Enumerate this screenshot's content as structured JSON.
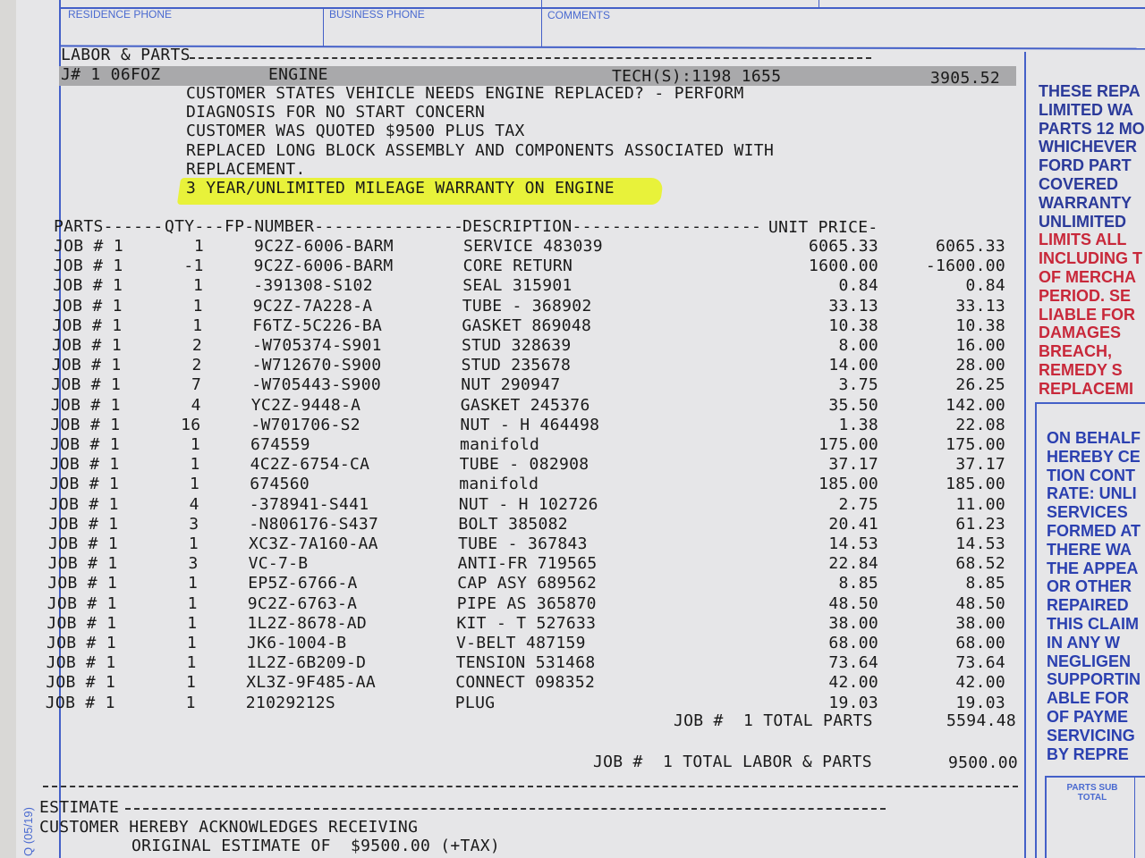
{
  "form": {
    "residence_phone_label": "RESIDENCE PHONE",
    "business_phone_label": "BUSINESS PHONE",
    "comments_label": "COMMENTS",
    "form_code": "Q (05/19)",
    "parts_subtotal_label": "PARTS SUB TOTAL",
    "line_color": "#4460c8"
  },
  "labor_parts": {
    "section_label": "LABOR & PARTS",
    "job": {
      "id": "J# 1 06FOZ",
      "name": "ENGINE",
      "techs": "TECH(S):1198 1655",
      "amount": "3905.52"
    },
    "notes": [
      "CUSTOMER STATES VEHICLE NEEDS ENGINE REPLACED? - PERFORM",
      "DIAGNOSIS FOR NO START CONCERN",
      "CUSTOMER WAS QUOTED $9500 PLUS TAX",
      "REPLACED LONG BLOCK ASSEMBLY AND COMPONENTS ASSOCIATED WITH",
      "REPLACEMENT.",
      "3 YEAR/UNLIMITED MILEAGE WARRANTY ON ENGINE"
    ],
    "highlight_color": "#e8f23a"
  },
  "parts_table": {
    "headers": {
      "parts": "PARTS------",
      "qty": "QTY---",
      "fp_number": "FP-NUMBER---------------",
      "description": "DESCRIPTION-------------------",
      "unit_price": "UNIT PRICE-"
    },
    "rows": [
      {
        "job": "JOB # 1",
        "qty": "1",
        "part": "9C2Z-6006-BARM",
        "desc": "SERVICE 483039",
        "unit": "6065.33",
        "total": "6065.33"
      },
      {
        "job": "JOB # 1",
        "qty": "-1",
        "part": "9C2Z-6006-BARM",
        "desc": "CORE RETURN",
        "unit": "1600.00",
        "total": "-1600.00"
      },
      {
        "job": "JOB # 1",
        "qty": "1",
        "part": "-391308-S102",
        "desc": "SEAL 315901",
        "unit": "0.84",
        "total": "0.84"
      },
      {
        "job": "JOB # 1",
        "qty": "1",
        "part": "9C2Z-7A228-A",
        "desc": "TUBE - 368902",
        "unit": "33.13",
        "total": "33.13"
      },
      {
        "job": "JOB # 1",
        "qty": "1",
        "part": "F6TZ-5C226-BA",
        "desc": "GASKET 869048",
        "unit": "10.38",
        "total": "10.38"
      },
      {
        "job": "JOB # 1",
        "qty": "2",
        "part": "-W705374-S901",
        "desc": "STUD 328639",
        "unit": "8.00",
        "total": "16.00"
      },
      {
        "job": "JOB # 1",
        "qty": "2",
        "part": "-W712670-S900",
        "desc": "STUD 235678",
        "unit": "14.00",
        "total": "28.00"
      },
      {
        "job": "JOB # 1",
        "qty": "7",
        "part": "-W705443-S900",
        "desc": "NUT 290947",
        "unit": "3.75",
        "total": "26.25"
      },
      {
        "job": "JOB # 1",
        "qty": "4",
        "part": "YC2Z-9448-A",
        "desc": "GASKET 245376",
        "unit": "35.50",
        "total": "142.00"
      },
      {
        "job": "JOB # 1",
        "qty": "16",
        "part": "-W701706-S2",
        "desc": "NUT - H 464498",
        "unit": "1.38",
        "total": "22.08"
      },
      {
        "job": "JOB # 1",
        "qty": "1",
        "part": "674559",
        "desc": "manifold",
        "unit": "175.00",
        "total": "175.00"
      },
      {
        "job": "JOB # 1",
        "qty": "1",
        "part": "4C2Z-6754-CA",
        "desc": "TUBE - 082908",
        "unit": "37.17",
        "total": "37.17"
      },
      {
        "job": "JOB # 1",
        "qty": "1",
        "part": "674560",
        "desc": "manifold",
        "unit": "185.00",
        "total": "185.00"
      },
      {
        "job": "JOB # 1",
        "qty": "4",
        "part": "-378941-S441",
        "desc": "NUT - H 102726",
        "unit": "2.75",
        "total": "11.00"
      },
      {
        "job": "JOB # 1",
        "qty": "3",
        "part": "-N806176-S437",
        "desc": "BOLT 385082",
        "unit": "20.41",
        "total": "61.23"
      },
      {
        "job": "JOB # 1",
        "qty": "1",
        "part": "XC3Z-7A160-AA",
        "desc": "TUBE - 367843",
        "unit": "14.53",
        "total": "14.53"
      },
      {
        "job": "JOB # 1",
        "qty": "3",
        "part": "VC-7-B",
        "desc": "ANTI-FR 719565",
        "unit": "22.84",
        "total": "68.52"
      },
      {
        "job": "JOB # 1",
        "qty": "1",
        "part": "EP5Z-6766-A",
        "desc": "CAP ASY 689562",
        "unit": "8.85",
        "total": "8.85"
      },
      {
        "job": "JOB # 1",
        "qty": "1",
        "part": "9C2Z-6763-A",
        "desc": "PIPE AS 365870",
        "unit": "48.50",
        "total": "48.50"
      },
      {
        "job": "JOB # 1",
        "qty": "1",
        "part": "1L2Z-8678-AD",
        "desc": "KIT - T 527633",
        "unit": "38.00",
        "total": "38.00"
      },
      {
        "job": "JOB # 1",
        "qty": "1",
        "part": "JK6-1004-B",
        "desc": "V-BELT 487159",
        "unit": "68.00",
        "total": "68.00"
      },
      {
        "job": "JOB # 1",
        "qty": "1",
        "part": "1L2Z-6B209-D",
        "desc": "TENSION 531468",
        "unit": "73.64",
        "total": "73.64"
      },
      {
        "job": "JOB # 1",
        "qty": "1",
        "part": "XL3Z-9F485-AA",
        "desc": "CONNECT 098352",
        "unit": "42.00",
        "total": "42.00"
      },
      {
        "job": "JOB # 1",
        "qty": "1",
        "part": "21029212S",
        "desc": "PLUG",
        "unit": "19.03",
        "total": "19.03"
      }
    ],
    "total_parts_label": "JOB #  1 TOTAL PARTS",
    "total_parts": "5594.48",
    "total_labor_parts_label": "JOB #  1 TOTAL LABOR & PARTS",
    "total_labor_parts": "9500.00"
  },
  "estimate": {
    "label": "ESTIMATE",
    "line1": "CUSTOMER HEREBY ACKNOWLEDGES RECEIVING",
    "line2": "ORIGINAL ESTIMATE OF  $9500.00 (+TAX)"
  },
  "warranty_text": {
    "blue_lines": [
      "THESE REPA",
      "LIMITED WA",
      "PARTS 12 MO",
      "WHICHEVER",
      "FORD PART",
      "COVERED",
      "WARRANTY",
      "UNLIMITED"
    ],
    "red_lines": [
      "LIMITS ALL",
      "INCLUDING T",
      "OF MERCHA",
      "PERIOD. SE",
      "LIABLE FOR",
      "DAMAGES",
      "BREACH,",
      "REMEDY S",
      "REPLACEMI"
    ],
    "blue_color": "#2b3a9a",
    "red_color": "#c8283a"
  },
  "certification_text": {
    "lines": [
      "ON BEHALF",
      "HEREBY CE",
      "TION CONT",
      "RATE: UNLI",
      "SERVICES",
      "FORMED AT",
      "THERE WA",
      "THE APPEA",
      "OR OTHER",
      "REPAIRED",
      "THIS CLAIM",
      "IN ANY W",
      "NEGLIGEN",
      "SUPPORTIN",
      "ABLE FOR",
      "OF PAYME",
      "SERVICING",
      "BY REPRE"
    ],
    "color": "#2b40b0"
  }
}
